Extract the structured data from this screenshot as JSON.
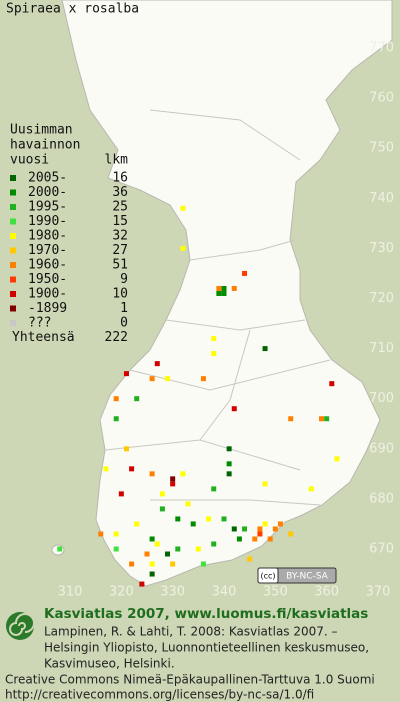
{
  "title": "Spiraea x rosalba",
  "legend": {
    "heading": [
      "Uusimman",
      "havainnon",
      "vuosi"
    ],
    "count_heading": "lkm",
    "rows": [
      {
        "label": "2005-",
        "count": 16,
        "color": "#006400",
        "squares": [
          [
            348,
            710
          ],
          [
            341,
            685
          ],
          [
            341,
            690
          ],
          [
            329,
            669
          ],
          [
            342,
            674
          ],
          [
            326,
            665
          ]
        ]
      },
      {
        "label": "2000-",
        "count": 36,
        "color": "#008c00",
        "squares": [
          [
            339,
            721
          ],
          [
            340,
            721
          ],
          [
            340,
            722
          ],
          [
            326,
            672
          ],
          [
            343,
            672
          ],
          [
            341,
            687
          ],
          [
            334,
            675
          ],
          [
            331,
            676
          ]
        ]
      },
      {
        "label": "1995-",
        "count": 25,
        "color": "#20b020",
        "squares": [
          [
            323,
            700
          ],
          [
            319,
            696
          ],
          [
            360,
            696
          ],
          [
            338,
            682
          ],
          [
            328,
            678
          ],
          [
            331,
            670
          ],
          [
            338,
            671
          ],
          [
            344,
            674
          ],
          [
            340,
            676
          ]
        ]
      },
      {
        "label": "1990-",
        "count": 15,
        "color": "#40e040",
        "squares": [
          [
            319,
            670
          ],
          [
            308,
            670
          ],
          [
            336,
            667
          ]
        ]
      },
      {
        "label": "1980-",
        "count": 32,
        "color": "#ffff00",
        "squares": [
          [
            332,
            738
          ],
          [
            332,
            730
          ],
          [
            338,
            712
          ],
          [
            338,
            709
          ],
          [
            329,
            704
          ],
          [
            317,
            686
          ],
          [
            332,
            685
          ],
          [
            348,
            683
          ],
          [
            357,
            682
          ],
          [
            362,
            688
          ],
          [
            333,
            679
          ],
          [
            323,
            675
          ],
          [
            327,
            671
          ],
          [
            335,
            670
          ],
          [
            348,
            675
          ],
          [
            337,
            676
          ],
          [
            326,
            667
          ],
          [
            319,
            673
          ],
          [
            328,
            681
          ]
        ]
      },
      {
        "label": "1970-",
        "count": 27,
        "color": "#ffc800",
        "squares": [
          [
            353,
            673
          ],
          [
            345,
            668
          ],
          [
            330,
            667
          ],
          [
            321,
            690
          ]
        ]
      },
      {
        "label": "1960-",
        "count": 51,
        "color": "#ff8000",
        "squares": [
          [
            339,
            722
          ],
          [
            342,
            722
          ],
          [
            326,
            704
          ],
          [
            336,
            704
          ],
          [
            319,
            700
          ],
          [
            353,
            696
          ],
          [
            359,
            696
          ],
          [
            326,
            685
          ],
          [
            325,
            669
          ],
          [
            346,
            672
          ],
          [
            347,
            674
          ],
          [
            349,
            672
          ],
          [
            350,
            674
          ],
          [
            351,
            675
          ],
          [
            322,
            667
          ],
          [
            316,
            673
          ]
        ]
      },
      {
        "label": "1950-",
        "count": 9,
        "color": "#ff3c00",
        "squares": [
          [
            344,
            725
          ],
          [
            347,
            673
          ]
        ]
      },
      {
        "label": "1900-",
        "count": 10,
        "color": "#d00000",
        "squares": [
          [
            327,
            707
          ],
          [
            321,
            705
          ],
          [
            361,
            703
          ],
          [
            342,
            698
          ],
          [
            322,
            686
          ],
          [
            320,
            681
          ],
          [
            324,
            663
          ],
          [
            330,
            683
          ]
        ]
      },
      {
        "label": "-1899",
        "count": 1,
        "color": "#800000",
        "squares": [
          [
            330,
            684
          ]
        ]
      },
      {
        "label": "???",
        "count": 0,
        "color": "#c8c8c8",
        "squares": []
      }
    ],
    "total_label": "Yhteensä",
    "total": 222
  },
  "grid": {
    "northing": [
      770,
      760,
      750,
      740,
      730,
      720,
      710,
      700,
      690,
      680,
      670
    ],
    "easting": [
      310,
      320,
      330,
      340,
      350,
      360,
      370
    ]
  },
  "license_badge": {
    "cc": "(cc)",
    "text": "BY-NC-SA"
  },
  "footer": {
    "heading": "Kasviatlas 2007, www.luomus.fi/kasviatlas",
    "citation": [
      "Lampinen, R. & Lahti, T. 2008: Kasviatlas 2007. –",
      "Helsingin Yliopisto, Luonnontieteellinen keskusmuseo,",
      "Kasvimuseo, Helsinki."
    ],
    "license": [
      "Creative Commons Nimeä-Epäkaupallinen-Tarttuva 1.0 Suomi",
      "http://creativecommons.org/licenses/by-nc-sa/1.0/fi"
    ]
  }
}
